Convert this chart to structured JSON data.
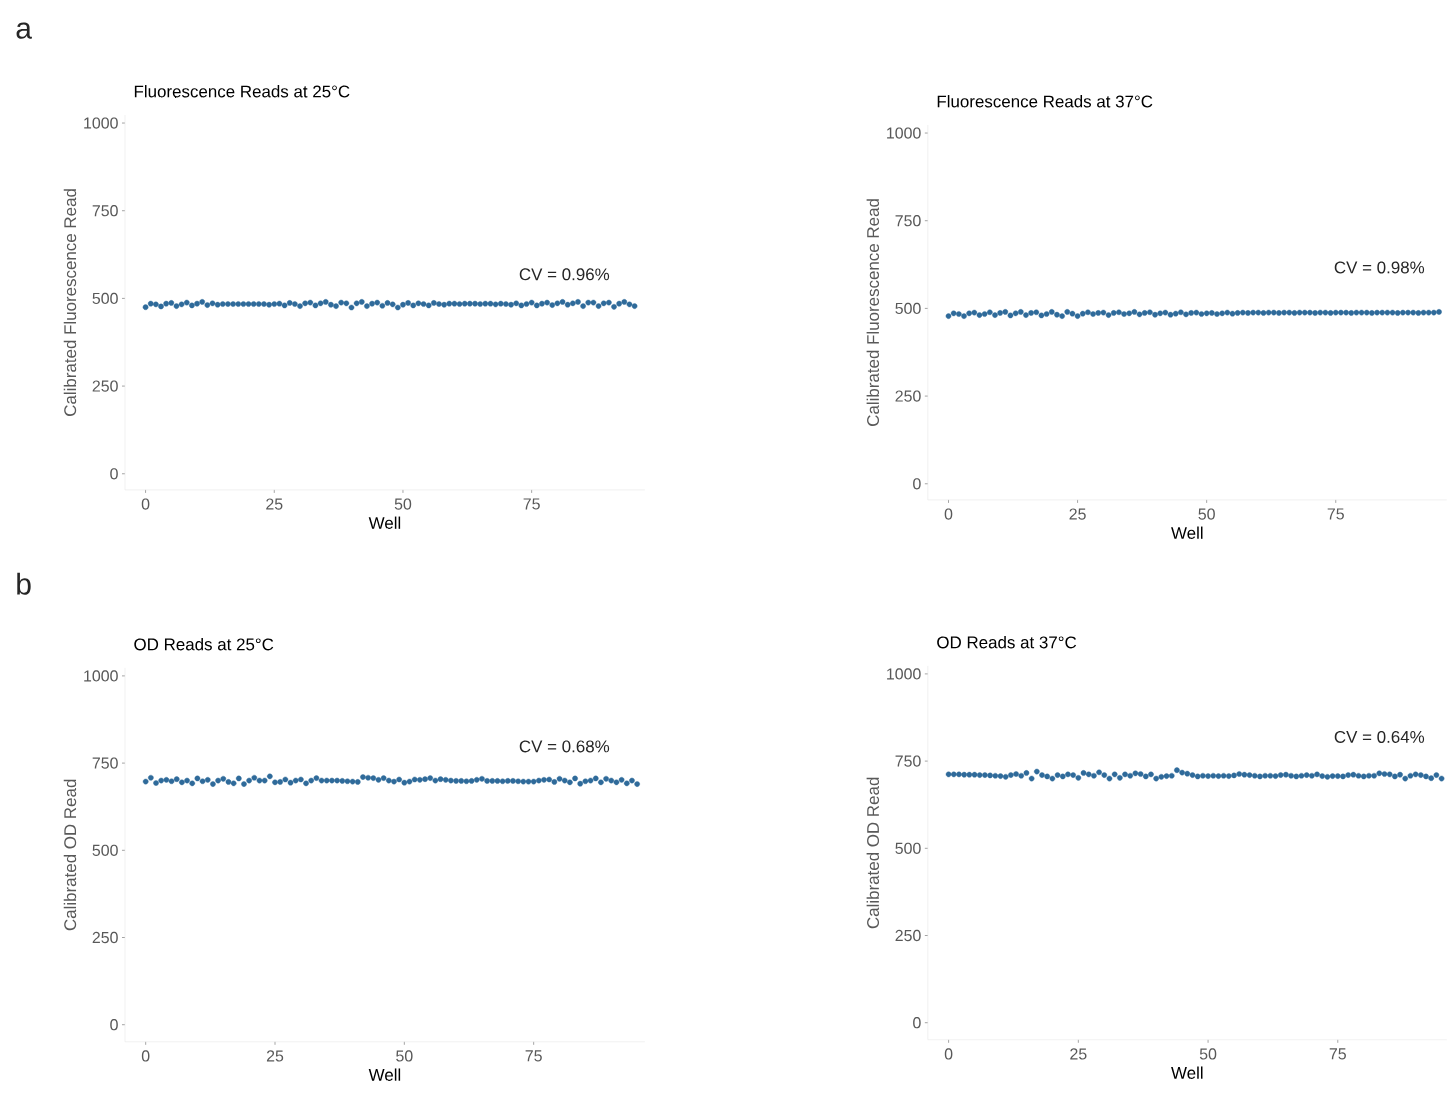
{
  "chart_data": [
    {
      "type": "scatter",
      "title": "Fluorescence Reads at 25°C",
      "xlabel": "Well",
      "ylabel": "Calibrated Fluorescence Read",
      "xlim": [
        -4,
        97
      ],
      "ylim": [
        -46,
        1023
      ],
      "xticks": [
        0,
        25,
        50,
        75
      ],
      "yticks": [
        0,
        250,
        500,
        750,
        1000
      ],
      "annotations": [
        "a",
        "CV = 0.96%"
      ],
      "x": [
        0,
        1,
        2,
        3,
        4,
        5,
        6,
        7,
        8,
        9,
        10,
        11,
        12,
        13,
        14,
        15,
        16,
        17,
        18,
        19,
        20,
        21,
        22,
        23,
        24,
        25,
        26,
        27,
        28,
        29,
        30,
        31,
        32,
        33,
        34,
        35,
        36,
        37,
        38,
        39,
        40,
        41,
        42,
        43,
        44,
        45,
        46,
        47,
        48,
        49,
        50,
        51,
        52,
        53,
        54,
        55,
        56,
        57,
        58,
        59,
        60,
        61,
        62,
        63,
        64,
        65,
        66,
        67,
        68,
        69,
        70,
        71,
        72,
        73,
        74,
        75,
        76,
        77,
        78,
        79,
        80,
        81,
        82,
        83,
        84,
        85,
        86,
        87,
        88,
        89,
        90,
        91,
        92,
        93,
        94,
        95
      ],
      "series": [
        {
          "color": "#2f6a9a",
          "values": [
            475,
            485,
            483,
            477,
            485,
            487,
            478,
            483,
            488,
            480,
            485,
            490,
            481,
            486,
            482,
            484,
            484,
            484,
            484,
            484,
            484,
            484,
            484,
            484,
            482,
            484,
            485,
            480,
            487,
            484,
            478,
            486,
            488,
            480,
            486,
            490,
            482,
            478,
            488,
            486,
            474,
            486,
            490,
            478,
            485,
            488,
            479,
            487,
            483,
            474,
            482,
            487,
            480,
            486,
            484,
            480,
            487,
            484,
            482,
            485,
            485,
            484,
            485,
            485,
            485,
            484,
            485,
            485,
            483,
            485,
            484,
            482,
            486,
            480,
            484,
            488,
            480,
            485,
            488,
            481,
            486,
            490,
            482,
            486,
            490,
            478,
            488,
            488,
            478,
            486,
            488,
            476,
            485,
            490,
            483,
            478
          ]
        }
      ]
    },
    {
      "type": "scatter",
      "title": "Fluorescence Reads at 37°C",
      "xlabel": "Well",
      "ylabel": "Calibrated Fluorescence Read",
      "xlim": [
        -4,
        96.5
      ],
      "ylim": [
        -46,
        1023
      ],
      "xticks": [
        0,
        25,
        50,
        75
      ],
      "yticks": [
        0,
        250,
        500,
        750,
        1000
      ],
      "annotations": [
        "CV = 0.98%"
      ],
      "x": [
        0,
        1,
        2,
        3,
        4,
        5,
        6,
        7,
        8,
        9,
        10,
        11,
        12,
        13,
        14,
        15,
        16,
        17,
        18,
        19,
        20,
        21,
        22,
        23,
        24,
        25,
        26,
        27,
        28,
        29,
        30,
        31,
        32,
        33,
        34,
        35,
        36,
        37,
        38,
        39,
        40,
        41,
        42,
        43,
        44,
        45,
        46,
        47,
        48,
        49,
        50,
        51,
        52,
        53,
        54,
        55,
        56,
        57,
        58,
        59,
        60,
        61,
        62,
        63,
        64,
        65,
        66,
        67,
        68,
        69,
        70,
        71,
        72,
        73,
        74,
        75,
        76,
        77,
        78,
        79,
        80,
        81,
        82,
        83,
        84,
        85,
        86,
        87,
        88,
        89,
        90,
        91,
        92,
        93,
        94,
        95
      ],
      "series": [
        {
          "color": "#2f6a9a",
          "values": [
            478,
            486,
            484,
            478,
            486,
            488,
            481,
            484,
            489,
            481,
            487,
            490,
            480,
            486,
            490,
            481,
            487,
            489,
            480,
            484,
            490,
            482,
            478,
            490,
            485,
            478,
            485,
            489,
            484,
            487,
            488,
            481,
            487,
            489,
            484,
            486,
            490,
            483,
            487,
            489,
            482,
            486,
            488,
            482,
            485,
            489,
            483,
            487,
            488,
            484,
            486,
            487,
            484,
            486,
            488,
            485,
            487,
            488,
            487,
            488,
            488,
            487,
            488,
            488,
            487,
            488,
            488,
            487,
            488,
            488,
            488,
            487,
            488,
            488,
            487,
            488,
            488,
            488,
            487,
            488,
            488,
            488,
            487,
            488,
            488,
            488,
            488,
            487,
            488,
            488,
            488,
            487,
            488,
            488,
            488,
            490
          ]
        }
      ]
    },
    {
      "type": "scatter",
      "title": "OD Reads at 25°C",
      "xlabel": "Well",
      "ylabel": "Calibrated OD Read",
      "xlim": [
        -4,
        96.5
      ],
      "ylim": [
        -49,
        1023
      ],
      "xticks": [
        0,
        25,
        50,
        75
      ],
      "yticks": [
        0,
        250,
        500,
        750,
        1000
      ],
      "annotations": [
        "b",
        "CV = 0.68%"
      ],
      "x": [
        0,
        1,
        2,
        3,
        4,
        5,
        6,
        7,
        8,
        9,
        10,
        11,
        12,
        13,
        14,
        15,
        16,
        17,
        18,
        19,
        20,
        21,
        22,
        23,
        24,
        25,
        26,
        27,
        28,
        29,
        30,
        31,
        32,
        33,
        34,
        35,
        36,
        37,
        38,
        39,
        40,
        41,
        42,
        43,
        44,
        45,
        46,
        47,
        48,
        49,
        50,
        51,
        52,
        53,
        54,
        55,
        56,
        57,
        58,
        59,
        60,
        61,
        62,
        63,
        64,
        65,
        66,
        67,
        68,
        69,
        70,
        71,
        72,
        73,
        74,
        75,
        76,
        77,
        78,
        79,
        80,
        81,
        82,
        83,
        84,
        85,
        86,
        87,
        88,
        89,
        90,
        91,
        92,
        93,
        94,
        95
      ],
      "series": [
        {
          "color": "#2f6a9a",
          "values": [
            697,
            708,
            693,
            700,
            702,
            698,
            704,
            695,
            700,
            692,
            706,
            698,
            702,
            690,
            700,
            705,
            696,
            692,
            706,
            690,
            700,
            708,
            700,
            700,
            712,
            695,
            696,
            703,
            694,
            700,
            703,
            692,
            700,
            707,
            700,
            700,
            700,
            700,
            699,
            698,
            697,
            696,
            710,
            708,
            707,
            702,
            707,
            700,
            697,
            703,
            694,
            697,
            703,
            702,
            704,
            707,
            700,
            704,
            702,
            700,
            699,
            699,
            698,
            699,
            702,
            705,
            699,
            699,
            699,
            698,
            699,
            699,
            698,
            697,
            697,
            697,
            700,
            702,
            703,
            696,
            705,
            700,
            695,
            706,
            691,
            698,
            700,
            706,
            695,
            705,
            700,
            695,
            702,
            692,
            700,
            690
          ]
        }
      ]
    },
    {
      "type": "scatter",
      "title": "OD Reads at 37°C",
      "xlabel": "Well",
      "ylabel": "Calibrated OD Read",
      "xlim": [
        -4,
        96
      ],
      "ylim": [
        -49,
        1023
      ],
      "xticks": [
        0,
        25,
        50,
        75
      ],
      "yticks": [
        0,
        250,
        500,
        750,
        1000
      ],
      "annotations": [
        "CV = 0.64%"
      ],
      "x": [
        0,
        1,
        2,
        3,
        4,
        5,
        6,
        7,
        8,
        9,
        10,
        11,
        12,
        13,
        14,
        15,
        16,
        17,
        18,
        19,
        20,
        21,
        22,
        23,
        24,
        25,
        26,
        27,
        28,
        29,
        30,
        31,
        32,
        33,
        34,
        35,
        36,
        37,
        38,
        39,
        40,
        41,
        42,
        43,
        44,
        45,
        46,
        47,
        48,
        49,
        50,
        51,
        52,
        53,
        54,
        55,
        56,
        57,
        58,
        59,
        60,
        61,
        62,
        63,
        64,
        65,
        66,
        67,
        68,
        69,
        70,
        71,
        72,
        73,
        74,
        75,
        76,
        77,
        78,
        79,
        80,
        81,
        82,
        83,
        84,
        85,
        86,
        87,
        88,
        89,
        90,
        91,
        92,
        93,
        94,
        95
      ],
      "series": [
        {
          "color": "#2f6a9a",
          "values": [
            712,
            712,
            712,
            711,
            711,
            711,
            710,
            710,
            709,
            708,
            707,
            705,
            710,
            713,
            708,
            716,
            700,
            720,
            710,
            706,
            700,
            710,
            706,
            712,
            710,
            702,
            716,
            712,
            708,
            718,
            710,
            700,
            712,
            702,
            712,
            708,
            715,
            713,
            706,
            712,
            700,
            705,
            707,
            708,
            724,
            717,
            714,
            710,
            706,
            708,
            707,
            708,
            707,
            708,
            707,
            709,
            713,
            711,
            710,
            708,
            706,
            708,
            708,
            707,
            710,
            711,
            708,
            706,
            708,
            710,
            708,
            712,
            707,
            705,
            707,
            707,
            706,
            710,
            711,
            708,
            706,
            708,
            708,
            715,
            713,
            712,
            706,
            711,
            700,
            708,
            712,
            710,
            706,
            701,
            710,
            700
          ]
        }
      ]
    }
  ]
}
